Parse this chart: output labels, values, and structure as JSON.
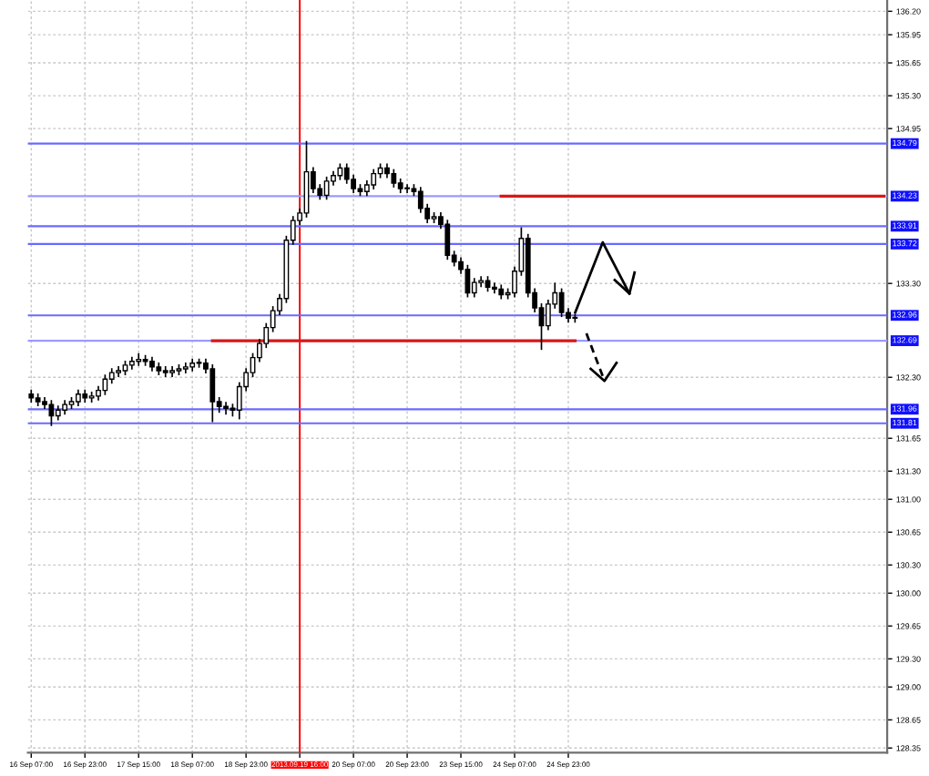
{
  "chart_data": {
    "type": "candlestick",
    "categories": [
      "16 Sep 07:00",
      null,
      null,
      null,
      null,
      null,
      null,
      null,
      "16 Sep 23:00",
      null,
      null,
      null,
      null,
      null,
      null,
      null,
      "17 Sep 15:00",
      null,
      null,
      null,
      null,
      null,
      null,
      null,
      "18 Sep 07:00",
      null,
      null,
      null,
      null,
      null,
      null,
      null,
      "18 Sep 23:00",
      null,
      null,
      null,
      null,
      null,
      null,
      null,
      "2013.09.19 16:00",
      null,
      null,
      null,
      null,
      null,
      null,
      null,
      "20 Sep 07:00",
      null,
      null,
      null,
      null,
      null,
      null,
      null,
      "20 Sep 23:00",
      null,
      null,
      null,
      null,
      null,
      null,
      null,
      "23 Sep 15:00",
      null,
      null,
      null,
      null,
      null,
      null,
      null,
      "24 Sep 07:00",
      null,
      null,
      null,
      null,
      null,
      null,
      null,
      "24 Sep 23:00",
      null,
      null,
      null,
      null,
      null,
      null,
      null,
      null,
      null,
      null,
      null,
      null,
      null,
      null,
      null,
      null,
      null,
      null,
      null,
      null,
      null,
      null,
      null,
      null,
      null,
      null,
      null,
      null,
      null,
      null,
      null,
      null,
      null,
      null,
      null,
      null,
      null,
      null,
      null,
      null,
      null,
      null,
      null,
      null,
      null,
      null,
      null
    ],
    "ohlc": [
      [
        132.12,
        132.16,
        132.04,
        132.08
      ],
      [
        132.08,
        132.12,
        132.0,
        132.04
      ],
      [
        132.04,
        132.08,
        131.97,
        132.01
      ],
      [
        132.01,
        132.05,
        131.79,
        131.89
      ],
      [
        131.89,
        131.99,
        131.85,
        131.95
      ],
      [
        131.95,
        132.05,
        131.91,
        132.01
      ],
      [
        132.01,
        132.08,
        131.97,
        132.04
      ],
      [
        132.04,
        132.16,
        132.0,
        132.12
      ],
      [
        132.12,
        132.16,
        132.04,
        132.08
      ],
      [
        132.08,
        132.14,
        132.04,
        132.1
      ],
      [
        132.1,
        132.2,
        132.06,
        132.16
      ],
      [
        132.16,
        132.32,
        132.12,
        132.28
      ],
      [
        132.28,
        132.39,
        132.24,
        132.35
      ],
      [
        132.35,
        132.41,
        132.31,
        132.37
      ],
      [
        132.37,
        132.47,
        132.33,
        132.43
      ],
      [
        132.43,
        132.51,
        132.39,
        132.47
      ],
      [
        132.47,
        132.55,
        132.43,
        132.49
      ],
      [
        132.49,
        132.53,
        132.43,
        132.47
      ],
      [
        132.47,
        132.51,
        132.37,
        132.41
      ],
      [
        132.41,
        132.45,
        132.33,
        132.37
      ],
      [
        132.37,
        132.41,
        132.31,
        132.35
      ],
      [
        132.35,
        132.41,
        132.31,
        132.37
      ],
      [
        132.37,
        132.43,
        132.33,
        132.39
      ],
      [
        132.39,
        132.45,
        132.35,
        132.41
      ],
      [
        132.41,
        132.49,
        132.37,
        132.45
      ],
      [
        132.45,
        132.49,
        132.41,
        132.45
      ],
      [
        132.45,
        132.49,
        132.35,
        132.39
      ],
      [
        132.39,
        132.43,
        131.83,
        132.04
      ],
      [
        132.04,
        132.08,
        131.93,
        131.99
      ],
      [
        131.99,
        132.03,
        131.91,
        131.97
      ],
      [
        131.97,
        132.01,
        131.89,
        131.95
      ],
      [
        131.95,
        132.24,
        131.86,
        132.2
      ],
      [
        132.2,
        132.39,
        132.16,
        132.35
      ],
      [
        132.35,
        132.55,
        132.31,
        132.51
      ],
      [
        132.51,
        132.7,
        132.47,
        132.66
      ],
      [
        132.66,
        132.87,
        132.62,
        132.83
      ],
      [
        132.83,
        133.05,
        132.79,
        133.01
      ],
      [
        133.01,
        133.18,
        132.97,
        133.14
      ],
      [
        133.14,
        133.8,
        133.1,
        133.76
      ],
      [
        133.76,
        134.01,
        133.72,
        133.97
      ],
      [
        133.97,
        134.09,
        133.93,
        134.05
      ],
      [
        134.05,
        134.81,
        134.01,
        134.49
      ],
      [
        134.49,
        134.53,
        134.27,
        134.31
      ],
      [
        134.31,
        134.35,
        134.2,
        134.24
      ],
      [
        134.24,
        134.43,
        134.2,
        134.39
      ],
      [
        134.39,
        134.49,
        134.35,
        134.45
      ],
      [
        134.45,
        134.57,
        134.41,
        134.53
      ],
      [
        134.53,
        134.57,
        134.37,
        134.41
      ],
      [
        134.41,
        134.45,
        134.27,
        134.31
      ],
      [
        134.31,
        134.35,
        134.24,
        134.28
      ],
      [
        134.28,
        134.39,
        134.24,
        134.35
      ],
      [
        134.35,
        134.51,
        134.31,
        134.47
      ],
      [
        134.47,
        134.57,
        134.43,
        134.53
      ],
      [
        134.53,
        134.57,
        134.43,
        134.47
      ],
      [
        134.47,
        134.51,
        134.33,
        134.37
      ],
      [
        134.37,
        134.41,
        134.27,
        134.31
      ],
      [
        134.31,
        134.35,
        134.27,
        134.31
      ],
      [
        134.31,
        134.35,
        134.24,
        134.28
      ],
      [
        134.28,
        134.32,
        134.06,
        134.1
      ],
      [
        134.1,
        134.14,
        133.95,
        133.99
      ],
      [
        133.99,
        134.05,
        133.95,
        134.01
      ],
      [
        134.01,
        134.05,
        133.89,
        133.93
      ],
      [
        133.93,
        133.97,
        133.56,
        133.6
      ],
      [
        133.6,
        133.64,
        133.49,
        133.53
      ],
      [
        133.53,
        133.57,
        133.41,
        133.45
      ],
      [
        133.45,
        133.49,
        133.16,
        133.2
      ],
      [
        133.2,
        133.35,
        133.16,
        133.31
      ],
      [
        133.31,
        133.37,
        133.27,
        133.33
      ],
      [
        133.33,
        133.37,
        133.22,
        133.26
      ],
      [
        133.26,
        133.3,
        133.2,
        133.24
      ],
      [
        133.24,
        133.28,
        133.14,
        133.18
      ],
      [
        133.18,
        133.24,
        133.14,
        133.2
      ],
      [
        133.2,
        133.47,
        133.16,
        133.43
      ],
      [
        133.43,
        133.89,
        133.39,
        133.78
      ],
      [
        133.78,
        133.82,
        133.16,
        133.2
      ],
      [
        133.2,
        133.24,
        133.0,
        133.04
      ],
      [
        133.04,
        133.08,
        132.6,
        132.85
      ],
      [
        132.85,
        133.12,
        132.81,
        133.08
      ],
      [
        133.08,
        133.3,
        133.04,
        133.2
      ],
      [
        133.2,
        133.24,
        132.95,
        132.99
      ],
      [
        132.99,
        133.03,
        132.89,
        132.93
      ],
      [
        132.93,
        132.97,
        132.89,
        132.93
      ],
      null,
      null,
      null,
      null,
      null,
      null,
      null,
      null,
      null,
      null,
      null,
      null,
      null,
      null,
      null,
      null,
      null,
      null,
      null,
      null,
      null,
      null,
      null,
      null,
      null,
      null,
      null,
      null,
      null,
      null,
      null,
      null,
      null,
      null,
      null,
      null,
      null,
      null,
      null,
      null,
      null,
      null,
      null,
      null,
      null,
      null
    ],
    "series": [
      {
        "type": "line",
        "color": "#d81818",
        "values": [
          null,
          null,
          null,
          null,
          null,
          null,
          null,
          null,
          null,
          null,
          null,
          null,
          null,
          null,
          null,
          null,
          null,
          null,
          null,
          null,
          null,
          null,
          null,
          null,
          null,
          null,
          null,
          null,
          null,
          null,
          null,
          null,
          null,
          null,
          null,
          null,
          null,
          null,
          null,
          null,
          null,
          null,
          null,
          null,
          null,
          null,
          null,
          null,
          null,
          null,
          null,
          null,
          null,
          null,
          null,
          null,
          null,
          null,
          null,
          null,
          null,
          null,
          null,
          null,
          null,
          null,
          null,
          null,
          null,
          null,
          134.23,
          134.23,
          134.23,
          134.23,
          134.23,
          134.23,
          134.23,
          134.23,
          134.23,
          134.23,
          134.23,
          134.23,
          134.23,
          134.23,
          134.23,
          134.23,
          134.23,
          134.23,
          134.23,
          134.23,
          134.23,
          134.23,
          134.23,
          134.23,
          134.23,
          134.23,
          134.23,
          134.23,
          134.23,
          134.23,
          134.23,
          134.23,
          134.23,
          134.23,
          134.23,
          134.23,
          134.23,
          134.23,
          134.23,
          134.23,
          134.23,
          134.23,
          134.23,
          134.23,
          134.23,
          134.23,
          134.23,
          134.23,
          134.23,
          134.23,
          134.23,
          134.23,
          134.23,
          134.23,
          134.23,
          134.23,
          134.23,
          134.23
        ]
      },
      {
        "type": "line",
        "color": "#d81818",
        "values": [
          null,
          null,
          null,
          null,
          null,
          null,
          null,
          null,
          null,
          null,
          null,
          null,
          null,
          null,
          null,
          null,
          null,
          null,
          null,
          null,
          null,
          null,
          null,
          null,
          null,
          null,
          null,
          132.69,
          132.69,
          132.69,
          132.69,
          132.69,
          132.69,
          132.69,
          132.69,
          132.69,
          132.69,
          132.69,
          132.69,
          132.69,
          132.69,
          132.69,
          132.69,
          132.69,
          132.69,
          132.69,
          132.69,
          132.69,
          132.69,
          132.69,
          132.69,
          132.69,
          132.69,
          132.69,
          132.69,
          132.69,
          132.69,
          132.69,
          132.69,
          132.69,
          132.69,
          132.69,
          132.69,
          132.69,
          132.69,
          132.69,
          132.69,
          132.69,
          132.69,
          132.69,
          132.69,
          132.69,
          132.69,
          132.69,
          132.69,
          132.69,
          132.69,
          132.69,
          132.69,
          132.69,
          132.69,
          132.69,
          null,
          null,
          null,
          null,
          null,
          null,
          null,
          null,
          null,
          null,
          null,
          null,
          null,
          null,
          null,
          null,
          null,
          null,
          null,
          null,
          null,
          null,
          null,
          null,
          null,
          null,
          null,
          null,
          null,
          null,
          null,
          null,
          null,
          null,
          null,
          null,
          null,
          null,
          null,
          null,
          null,
          null,
          null,
          null,
          null,
          null
        ]
      }
    ],
    "ylim": [
      128.3,
      136.32
    ],
    "yticks": [
      {
        "value": 136.2,
        "label": "136.20"
      },
      {
        "value": 135.95,
        "label": "135.95"
      },
      {
        "value": 135.65,
        "label": "135.65"
      },
      {
        "value": 135.3,
        "label": "135.30"
      },
      {
        "value": 134.95,
        "label": "134.95"
      },
      {
        "value": 133.3,
        "label": "133.30"
      },
      {
        "value": 132.3,
        "label": "132.30"
      },
      {
        "value": 131.65,
        "label": "131.65"
      },
      {
        "value": 131.3,
        "label": "131.30"
      },
      {
        "value": 131.0,
        "label": "131.00"
      },
      {
        "value": 130.65,
        "label": "130.65"
      },
      {
        "value": 130.3,
        "label": "130.30"
      },
      {
        "value": 130.0,
        "label": "130.00"
      },
      {
        "value": 129.65,
        "label": "129.65"
      },
      {
        "value": 129.3,
        "label": "129.30"
      },
      {
        "value": 129.0,
        "label": "129.00"
      },
      {
        "value": 128.65,
        "label": "128.65"
      },
      {
        "value": 128.35,
        "label": "128.35"
      }
    ],
    "ref_lines": [
      {
        "axis": "x",
        "value": "2013.09.19 16:00",
        "color": "#ff0000"
      },
      {
        "axis": "y",
        "value": 134.79,
        "label": "134.79",
        "color": "#6a6aff"
      },
      {
        "axis": "y",
        "value": 134.23,
        "label": "134.23",
        "color": "#9a9aff"
      },
      {
        "axis": "y",
        "value": 133.91,
        "label": "133.91",
        "color": "#6a6aff"
      },
      {
        "axis": "y",
        "value": 133.72,
        "label": "133.72",
        "color": "#6a6aff"
      },
      {
        "axis": "y",
        "value": 132.96,
        "label": "132.96",
        "color": "#6a6aff"
      },
      {
        "axis": "y",
        "value": 132.69,
        "label": "132.69",
        "color": "#9a9aff"
      },
      {
        "axis": "y",
        "value": 131.96,
        "label": "131.96",
        "color": "#6a6aff"
      },
      {
        "axis": "y",
        "value": 131.81,
        "label": "131.81",
        "color": "#6a6aff"
      }
    ],
    "grid": true
  }
}
